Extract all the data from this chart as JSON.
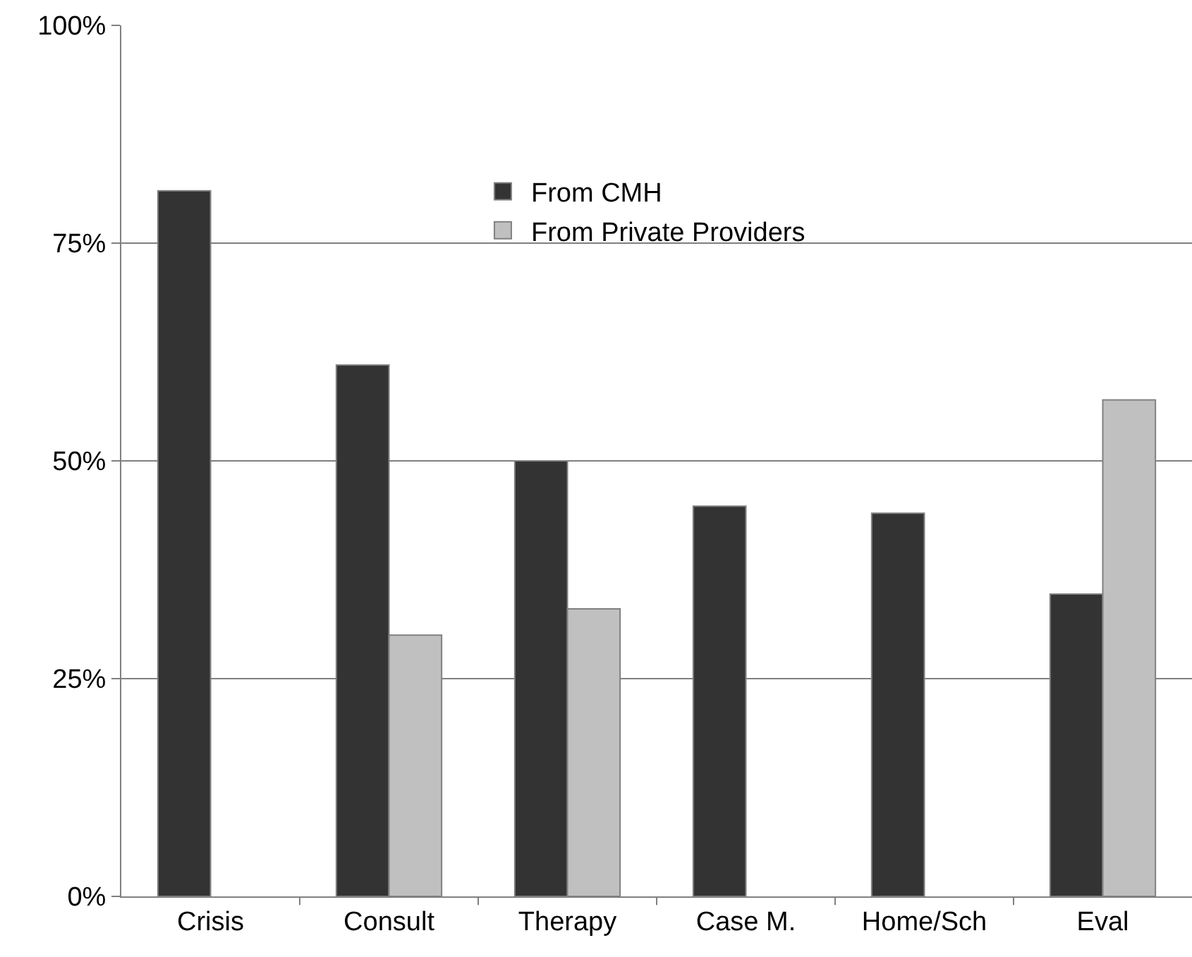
{
  "chart_data": {
    "type": "bar",
    "categories": [
      "Crisis",
      "Consult",
      "Therapy",
      "Case M.",
      "Home/Sch",
      "Eval"
    ],
    "series": [
      {
        "name": "From CMH",
        "color": "#333333",
        "values": [
          81,
          61,
          50,
          44.8,
          44,
          34.7
        ]
      },
      {
        "name": "From Private Providers",
        "color": "#c0c0c0",
        "values": [
          null,
          30,
          33,
          null,
          null,
          57
        ]
      }
    ],
    "ylim": [
      0,
      100
    ],
    "yticks": [
      {
        "value": 0,
        "label": "0%"
      },
      {
        "value": 25,
        "label": "25%"
      },
      {
        "value": 50,
        "label": "50%"
      },
      {
        "value": 75,
        "label": "75%"
      },
      {
        "value": 100,
        "label": "100%"
      }
    ],
    "grid": "y",
    "legend": "top"
  }
}
